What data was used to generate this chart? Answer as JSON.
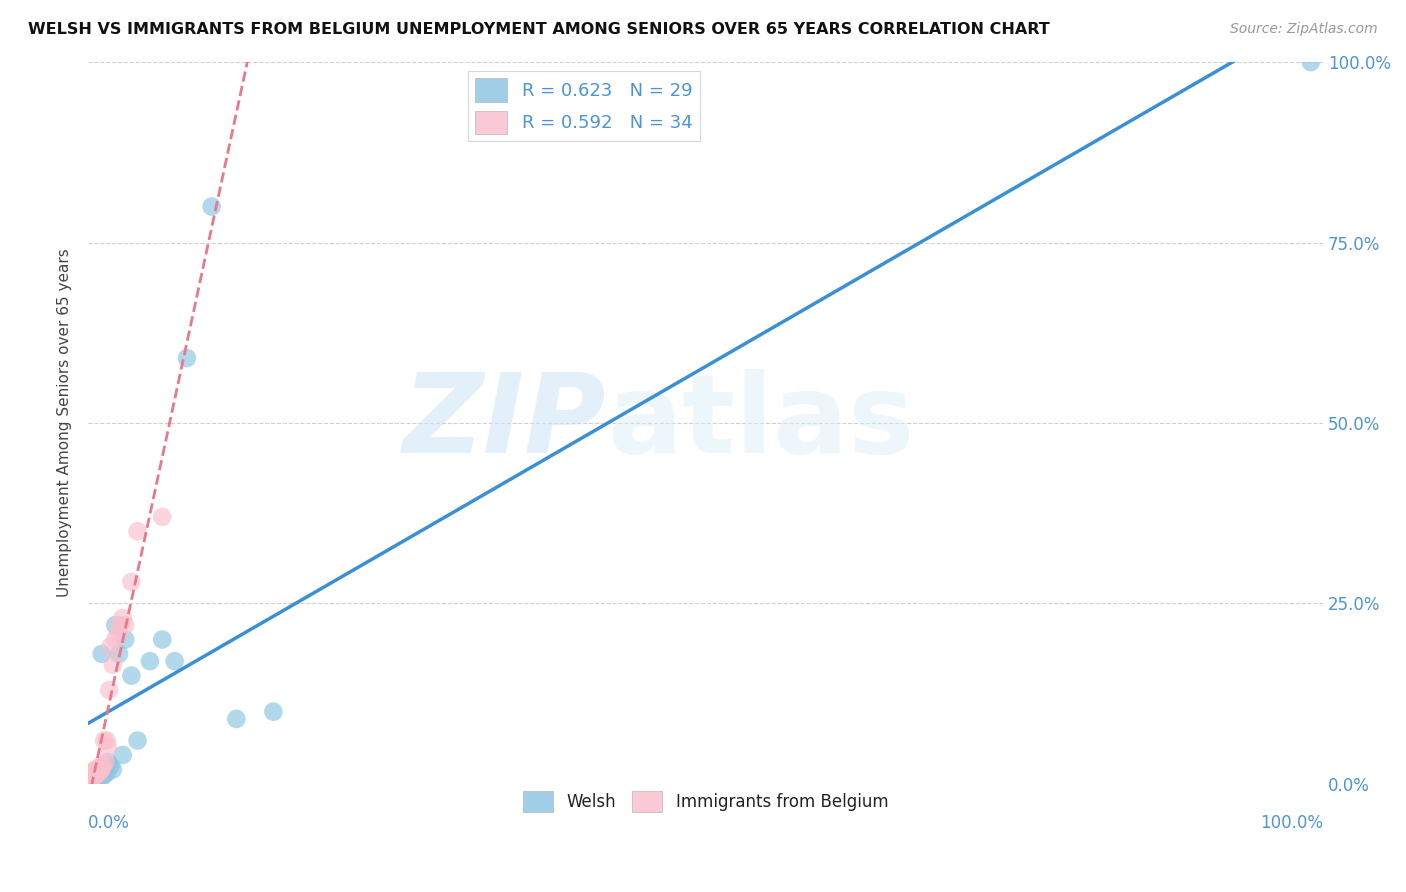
{
  "title": "WELSH VS IMMIGRANTS FROM BELGIUM UNEMPLOYMENT AMONG SENIORS OVER 65 YEARS CORRELATION CHART",
  "source": "Source: ZipAtlas.com",
  "ylabel": "Unemployment Among Seniors over 65 years",
  "watermark_text": "ZIP",
  "watermark_text2": "atlas",
  "legend_labels": [
    "Welsh",
    "Immigrants from Belgium"
  ],
  "r_welsh": 0.623,
  "n_welsh": 29,
  "r_belgium": 0.592,
  "n_belgium": 34,
  "blue_color": "#89c4e1",
  "pink_color": "#f9bfcc",
  "regression_blue": "#3b8fd4",
  "regression_pink": "#e8788a",
  "axis_label_color": "#4d94d4",
  "title_color": "#111111",
  "welsh_x": [
    0.001,
    0.003,
    0.004,
    0.005,
    0.006,
    0.008,
    0.009,
    0.01,
    0.011,
    0.012,
    0.013,
    0.015,
    0.016,
    0.018,
    0.02,
    0.022,
    0.025,
    0.028,
    0.03,
    0.035,
    0.04,
    0.05,
    0.06,
    0.07,
    0.08,
    0.1,
    0.12,
    0.15,
    0.99
  ],
  "welsh_y": [
    0.01,
    0.012,
    0.015,
    0.01,
    0.008,
    0.012,
    0.015,
    0.01,
    0.18,
    0.01,
    0.02,
    0.015,
    0.03,
    0.025,
    0.02,
    0.22,
    0.18,
    0.04,
    0.2,
    0.15,
    0.06,
    0.17,
    0.2,
    0.17,
    0.59,
    0.8,
    0.09,
    0.1,
    1.0
  ],
  "belgium_x": [
    0.001,
    0.001,
    0.002,
    0.002,
    0.003,
    0.003,
    0.004,
    0.004,
    0.005,
    0.005,
    0.006,
    0.006,
    0.007,
    0.008,
    0.009,
    0.01,
    0.01,
    0.011,
    0.012,
    0.013,
    0.014,
    0.015,
    0.016,
    0.017,
    0.018,
    0.02,
    0.022,
    0.024,
    0.026,
    0.028,
    0.03,
    0.035,
    0.04,
    0.06
  ],
  "belgium_y": [
    0.005,
    0.01,
    0.008,
    0.015,
    0.01,
    0.012,
    0.012,
    0.015,
    0.01,
    0.018,
    0.012,
    0.02,
    0.015,
    0.018,
    0.015,
    0.02,
    0.025,
    0.02,
    0.025,
    0.06,
    0.03,
    0.06,
    0.05,
    0.13,
    0.19,
    0.165,
    0.2,
    0.21,
    0.22,
    0.23,
    0.22,
    0.28,
    0.35,
    0.37
  ],
  "xlim": [
    0,
    1.0
  ],
  "ylim": [
    0,
    1.0
  ],
  "yticks": [
    0.0,
    0.25,
    0.5,
    0.75,
    1.0
  ],
  "xticks": [
    0.0,
    0.25,
    0.5,
    0.75,
    1.0
  ],
  "right_tick_labels": [
    "0.0%",
    "25.0%",
    "50.0%",
    "75.0%",
    "100.0%"
  ],
  "bottom_tick_labels_left": "0.0%",
  "bottom_tick_labels_right": "100.0%"
}
